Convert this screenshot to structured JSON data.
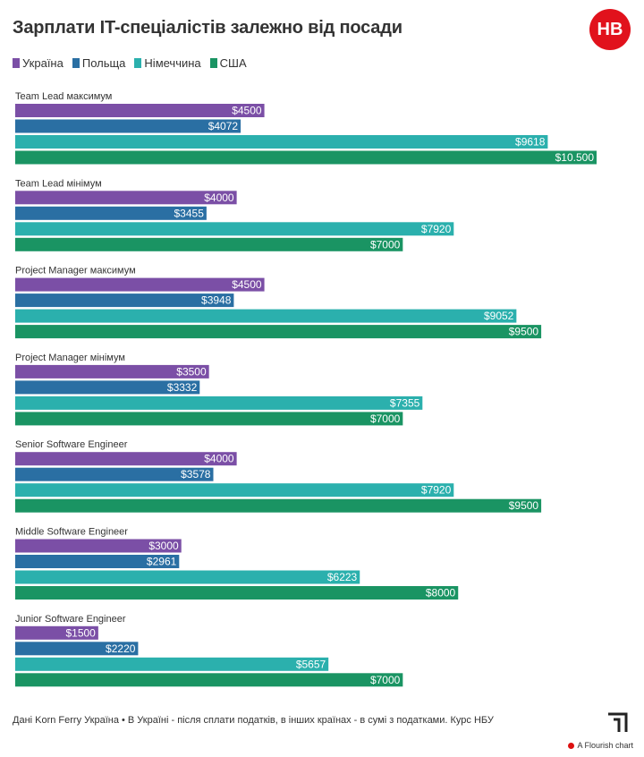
{
  "header": {
    "title": "Зарплати IT-спеціалістів залежно від посади",
    "logo_text": "НВ"
  },
  "legend": [
    {
      "label": "Україна",
      "color": "#7b4fa6"
    },
    {
      "label": "Польща",
      "color": "#2a6fa3"
    },
    {
      "label": "Німеччина",
      "color": "#2bb0ad"
    },
    {
      "label": "США",
      "color": "#1a9463"
    }
  ],
  "chart_data": {
    "type": "bar",
    "orientation": "horizontal",
    "xlim": [
      0,
      11000
    ],
    "categories": [
      "Team Lead максимум",
      "Team Lead мінімум",
      "Project Manager максимум",
      "Project Manager мінімум",
      "Senior Software Engineer",
      "Middle Software Engineer",
      "Junior Software Engineer"
    ],
    "series": [
      {
        "name": "Україна",
        "color": "#7b4fa6",
        "values": [
          4500,
          4000,
          4500,
          3500,
          4000,
          3000,
          1500
        ],
        "labels": [
          "$4500",
          "$4000",
          "$4500",
          "$3500",
          "$4000",
          "$3000",
          "$1500"
        ]
      },
      {
        "name": "Польща",
        "color": "#2a6fa3",
        "values": [
          4072,
          3455,
          3948,
          3332,
          3578,
          2961,
          2220
        ],
        "labels": [
          "$4072",
          "$3455",
          "$3948",
          "$3332",
          "$3578",
          "$2961",
          "$2220"
        ]
      },
      {
        "name": "Німеччина",
        "color": "#2bb0ad",
        "values": [
          9618,
          7920,
          9052,
          7355,
          7920,
          6223,
          5657
        ],
        "labels": [
          "$9618",
          "$7920",
          "$9052",
          "$7355",
          "$7920",
          "$6223",
          "$5657"
        ]
      },
      {
        "name": "США",
        "color": "#1a9463",
        "values": [
          10500,
          7000,
          9500,
          7000,
          9500,
          8000,
          7000
        ],
        "labels": [
          "$10.500",
          "$7000",
          "$9500",
          "$7000",
          "$9500",
          "$8000",
          "$7000"
        ]
      }
    ]
  },
  "footer": {
    "note": "Дані Korn Ferry Україна • В Україні - після сплати податків, в інших країнах - в сумі з податками. Курс НБУ",
    "flourish_label": "A Flourish chart"
  }
}
